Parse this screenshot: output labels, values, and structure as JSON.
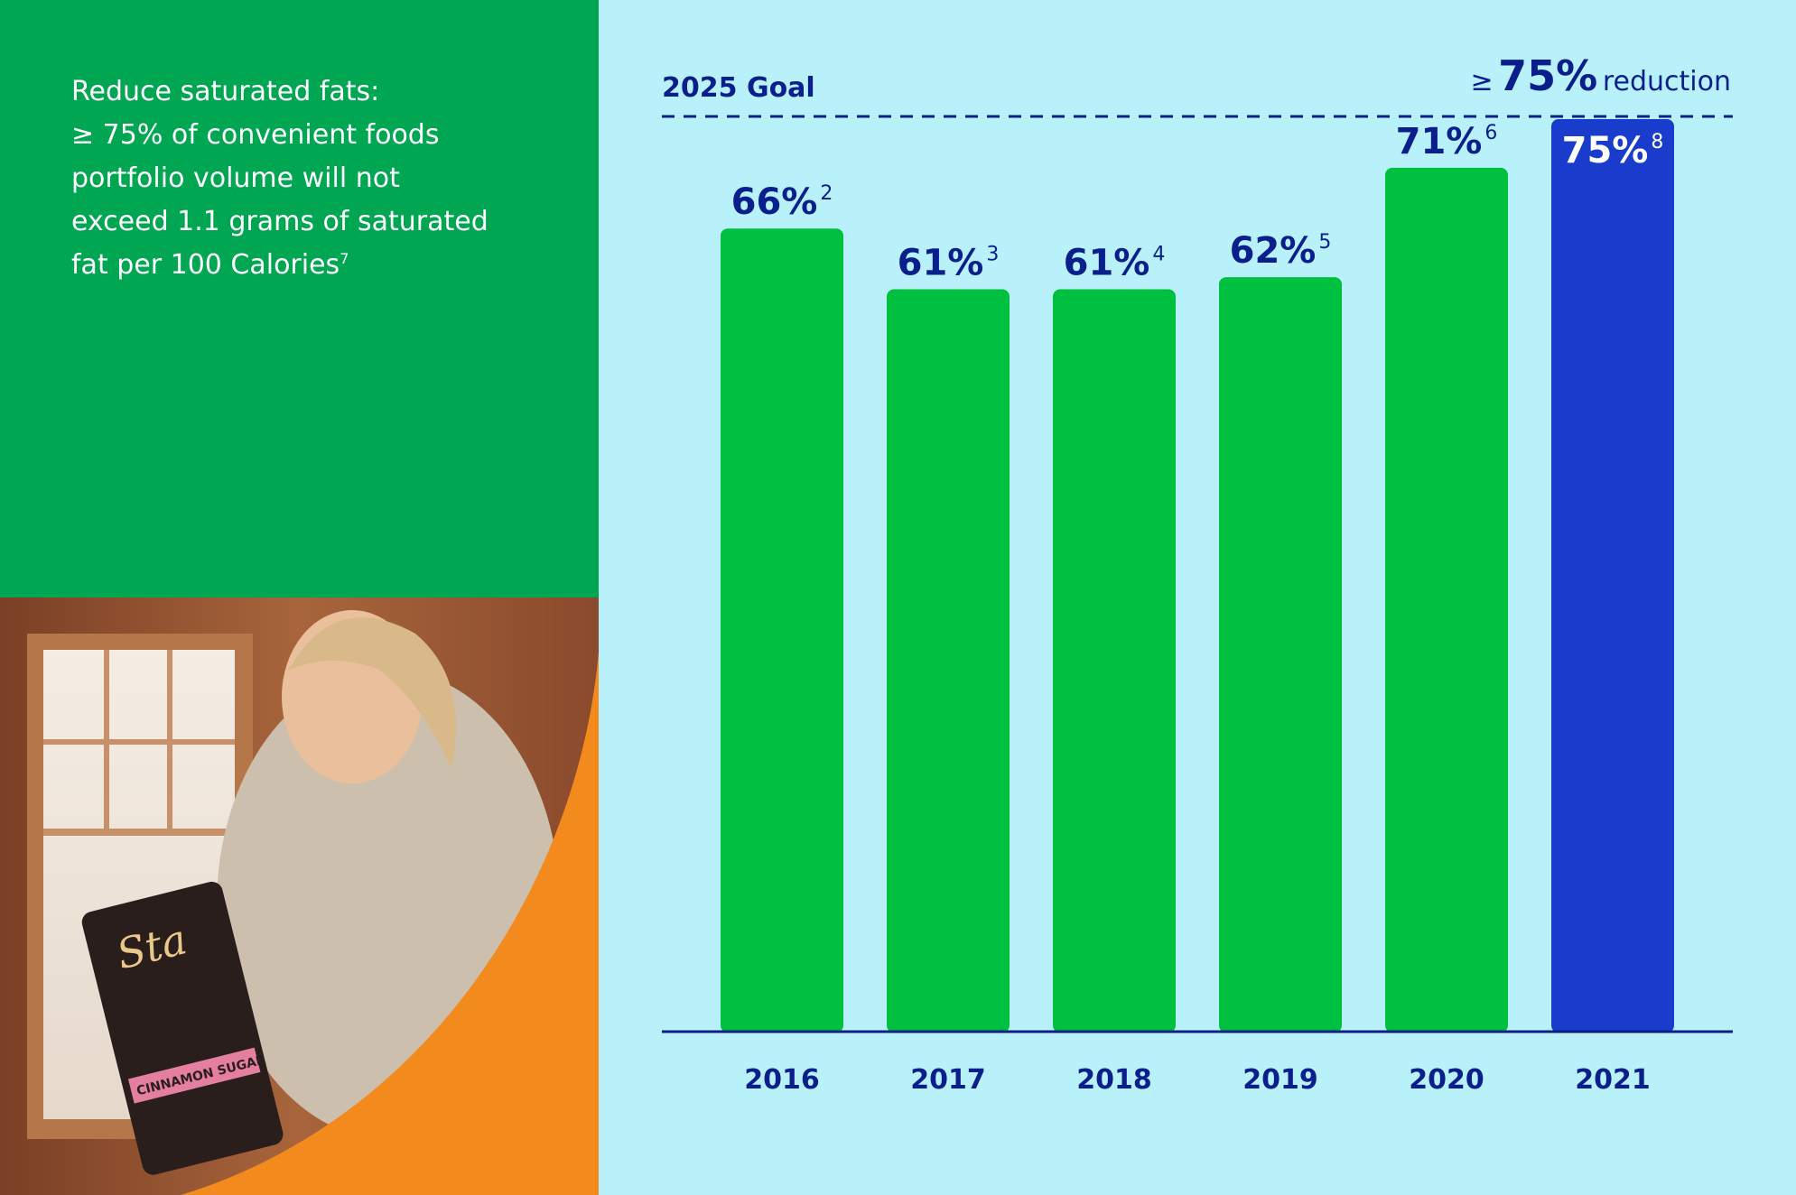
{
  "goal_text": {
    "lines": [
      "Reduce saturated fats:",
      "≥ 75% of convenient foods",
      "portfolio volume will not",
      "exceed 1.1 grams of saturated",
      "fat per 100 Calories"
    ],
    "footnote": "7"
  },
  "photo": {
    "bag_brand": "Sta",
    "bag_flavor": "CINNAMON SUGAR"
  },
  "colors": {
    "left_panel": "#00a651",
    "chart_background": "#b8f1f9",
    "bar_green": "#00c040",
    "bar_highlight": "#1a3ccc",
    "text_navy": "#0b1f8c",
    "orange": "#f28a1e"
  },
  "chart_data": {
    "type": "bar",
    "title": "",
    "xlabel": "",
    "ylabel": "",
    "ylim": [
      0,
      75
    ],
    "grid": false,
    "categories": [
      "2016",
      "2017",
      "2018",
      "2019",
      "2020",
      "2021"
    ],
    "values": [
      66,
      61,
      61,
      62,
      71,
      75
    ],
    "value_labels": [
      "66%",
      "61%",
      "61%",
      "62%",
      "71%",
      "75%"
    ],
    "footnotes": [
      "2",
      "3",
      "4",
      "5",
      "6",
      "8"
    ],
    "highlight_category": "2021",
    "goal": {
      "label": "2025 Goal",
      "value": 75,
      "prefix": "≥",
      "value_text": "75%",
      "suffix": "reduction"
    }
  }
}
